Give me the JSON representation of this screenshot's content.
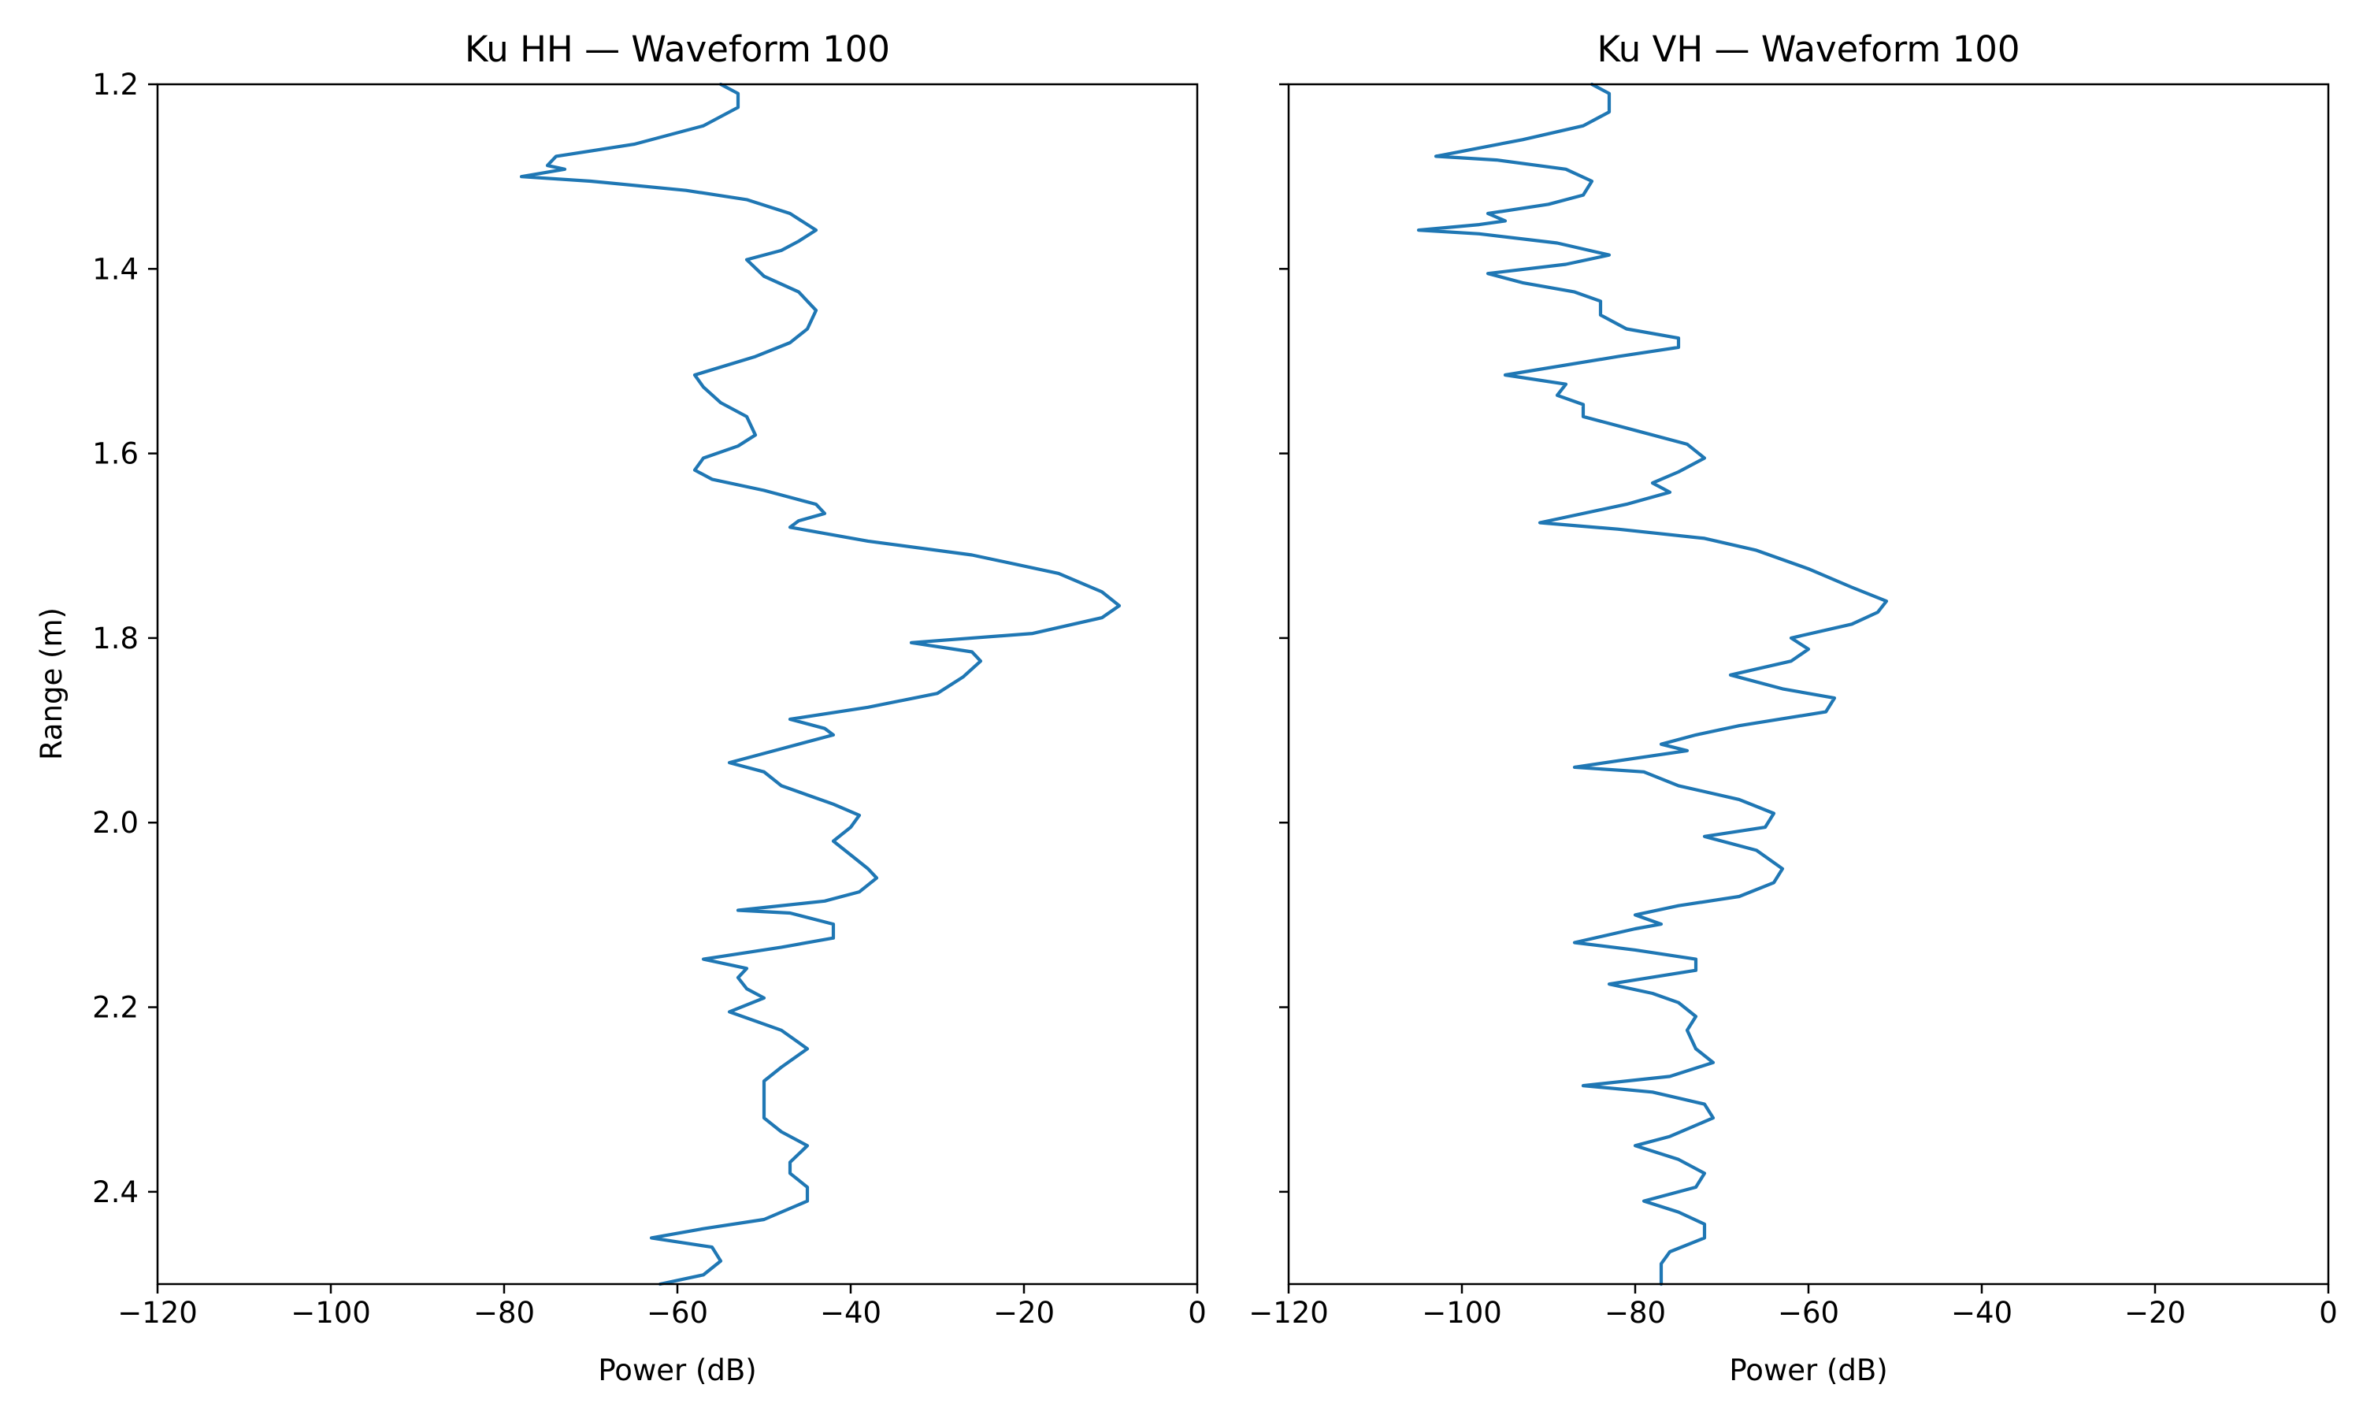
{
  "colors": {
    "series": "#1f77b4",
    "axes": "#000000",
    "background": "#ffffff"
  },
  "chart_data": [
    {
      "type": "line",
      "title": "Ku HH — Waveform 100",
      "xlabel": "Power (dB)",
      "ylabel": "Range (m)",
      "xlim": [
        -120,
        0
      ],
      "ylim": [
        1.2,
        2.5
      ],
      "y_inverted": true,
      "grid": false,
      "xticks": [
        -120,
        -100,
        -80,
        -60,
        -40,
        -20,
        0
      ],
      "xtick_labels": [
        "−120",
        "−100",
        "−80",
        "−60",
        "−40",
        "−20",
        "0"
      ],
      "yticks": [
        1.2,
        1.4,
        1.6,
        1.8,
        2.0,
        2.2,
        2.4
      ],
      "ytick_labels": [
        "1.2",
        "1.4",
        "1.6",
        "1.8",
        "2.0",
        "2.2",
        "2.4"
      ],
      "series": [
        {
          "name": "HH",
          "points": [
            [
              -55,
              1.2
            ],
            [
              -53,
              1.21
            ],
            [
              -53,
              1.225
            ],
            [
              -57,
              1.245
            ],
            [
              -65,
              1.265
            ],
            [
              -74,
              1.278
            ],
            [
              -75,
              1.288
            ],
            [
              -73,
              1.292
            ],
            [
              -78,
              1.3
            ],
            [
              -70,
              1.305
            ],
            [
              -59,
              1.315
            ],
            [
              -52,
              1.325
            ],
            [
              -47,
              1.34
            ],
            [
              -44,
              1.358
            ],
            [
              -46,
              1.37
            ],
            [
              -48,
              1.38
            ],
            [
              -52,
              1.39
            ],
            [
              -50,
              1.408
            ],
            [
              -46,
              1.425
            ],
            [
              -44,
              1.445
            ],
            [
              -45,
              1.465
            ],
            [
              -47,
              1.48
            ],
            [
              -51,
              1.495
            ],
            [
              -58,
              1.515
            ],
            [
              -57,
              1.528
            ],
            [
              -55,
              1.545
            ],
            [
              -52,
              1.56
            ],
            [
              -51,
              1.58
            ],
            [
              -53,
              1.592
            ],
            [
              -57,
              1.605
            ],
            [
              -58,
              1.618
            ],
            [
              -56,
              1.628
            ],
            [
              -50,
              1.64
            ],
            [
              -44,
              1.655
            ],
            [
              -43,
              1.665
            ],
            [
              -46,
              1.673
            ],
            [
              -47,
              1.68
            ],
            [
              -38,
              1.695
            ],
            [
              -26,
              1.71
            ],
            [
              -16,
              1.73
            ],
            [
              -11,
              1.75
            ],
            [
              -9,
              1.765
            ],
            [
              -11,
              1.778
            ],
            [
              -19,
              1.795
            ],
            [
              -33,
              1.805
            ],
            [
              -26,
              1.815
            ],
            [
              -25,
              1.825
            ],
            [
              -27,
              1.842
            ],
            [
              -30,
              1.86
            ],
            [
              -38,
              1.875
            ],
            [
              -47,
              1.888
            ],
            [
              -43,
              1.898
            ],
            [
              -42,
              1.905
            ],
            [
              -48,
              1.92
            ],
            [
              -54,
              1.935
            ],
            [
              -50,
              1.945
            ],
            [
              -48,
              1.96
            ],
            [
              -45,
              1.97
            ],
            [
              -42,
              1.98
            ],
            [
              -39,
              1.992
            ],
            [
              -40,
              2.005
            ],
            [
              -42,
              2.02
            ],
            [
              -40,
              2.035
            ],
            [
              -38,
              2.05
            ],
            [
              -37,
              2.06
            ],
            [
              -39,
              2.075
            ],
            [
              -43,
              2.085
            ],
            [
              -53,
              2.095
            ],
            [
              -47,
              2.098
            ],
            [
              -42,
              2.11
            ],
            [
              -42,
              2.125
            ],
            [
              -48,
              2.135
            ],
            [
              -57,
              2.148
            ],
            [
              -52,
              2.158
            ],
            [
              -53,
              2.168
            ],
            [
              -52,
              2.18
            ],
            [
              -50,
              2.19
            ],
            [
              -54,
              2.205
            ],
            [
              -48,
              2.225
            ],
            [
              -45,
              2.245
            ],
            [
              -48,
              2.265
            ],
            [
              -50,
              2.28
            ],
            [
              -50,
              2.3
            ],
            [
              -50,
              2.32
            ],
            [
              -48,
              2.335
            ],
            [
              -45,
              2.35
            ],
            [
              -47,
              2.368
            ],
            [
              -47,
              2.38
            ],
            [
              -45,
              2.395
            ],
            [
              -45,
              2.41
            ],
            [
              -50,
              2.43
            ],
            [
              -57,
              2.44
            ],
            [
              -63,
              2.45
            ],
            [
              -56,
              2.46
            ],
            [
              -55,
              2.475
            ],
            [
              -57,
              2.49
            ],
            [
              -62,
              2.5
            ]
          ]
        }
      ]
    },
    {
      "type": "line",
      "title": "Ku VH — Waveform 100",
      "xlabel": "Power (dB)",
      "ylabel": "",
      "xlim": [
        -120,
        0
      ],
      "ylim": [
        1.2,
        2.5
      ],
      "y_inverted": true,
      "grid": false,
      "xticks": [
        -120,
        -100,
        -80,
        -60,
        -40,
        -20,
        0
      ],
      "xtick_labels": [
        "−120",
        "−100",
        "−80",
        "−60",
        "−40",
        "−20",
        "0"
      ],
      "yticks": [
        1.2,
        1.4,
        1.6,
        1.8,
        2.0,
        2.2,
        2.4
      ],
      "ytick_labels": [],
      "series": [
        {
          "name": "VH",
          "points": [
            [
              -85,
              1.2
            ],
            [
              -83,
              1.21
            ],
            [
              -83,
              1.23
            ],
            [
              -86,
              1.245
            ],
            [
              -93,
              1.26
            ],
            [
              -103,
              1.278
            ],
            [
              -96,
              1.282
            ],
            [
              -88,
              1.292
            ],
            [
              -85,
              1.305
            ],
            [
              -86,
              1.32
            ],
            [
              -90,
              1.33
            ],
            [
              -97,
              1.34
            ],
            [
              -95,
              1.348
            ],
            [
              -98,
              1.352
            ],
            [
              -105,
              1.358
            ],
            [
              -98,
              1.362
            ],
            [
              -89,
              1.372
            ],
            [
              -83,
              1.385
            ],
            [
              -88,
              1.395
            ],
            [
              -97,
              1.405
            ],
            [
              -93,
              1.415
            ],
            [
              -87,
              1.425
            ],
            [
              -84,
              1.435
            ],
            [
              -84,
              1.45
            ],
            [
              -81,
              1.465
            ],
            [
              -75,
              1.475
            ],
            [
              -75,
              1.485
            ],
            [
              -82,
              1.495
            ],
            [
              -95,
              1.515
            ],
            [
              -88,
              1.525
            ],
            [
              -89,
              1.537
            ],
            [
              -86,
              1.547
            ],
            [
              -86,
              1.56
            ],
            [
              -80,
              1.575
            ],
            [
              -74,
              1.59
            ],
            [
              -72,
              1.605
            ],
            [
              -75,
              1.62
            ],
            [
              -78,
              1.632
            ],
            [
              -76,
              1.642
            ],
            [
              -81,
              1.655
            ],
            [
              -91,
              1.675
            ],
            [
              -82,
              1.682
            ],
            [
              -72,
              1.692
            ],
            [
              -66,
              1.705
            ],
            [
              -60,
              1.725
            ],
            [
              -55,
              1.745
            ],
            [
              -51,
              1.76
            ],
            [
              -52,
              1.772
            ],
            [
              -55,
              1.785
            ],
            [
              -62,
              1.8
            ],
            [
              -60,
              1.812
            ],
            [
              -62,
              1.825
            ],
            [
              -69,
              1.84
            ],
            [
              -63,
              1.855
            ],
            [
              -57,
              1.865
            ],
            [
              -58,
              1.88
            ],
            [
              -68,
              1.895
            ],
            [
              -73,
              1.905
            ],
            [
              -77,
              1.915
            ],
            [
              -74,
              1.922
            ],
            [
              -87,
              1.94
            ],
            [
              -79,
              1.945
            ],
            [
              -75,
              1.96
            ],
            [
              -68,
              1.975
            ],
            [
              -64,
              1.99
            ],
            [
              -65,
              2.005
            ],
            [
              -72,
              2.015
            ],
            [
              -66,
              2.03
            ],
            [
              -63,
              2.05
            ],
            [
              -64,
              2.065
            ],
            [
              -68,
              2.08
            ],
            [
              -75,
              2.09
            ],
            [
              -80,
              2.1
            ],
            [
              -77,
              2.11
            ],
            [
              -80,
              2.115
            ],
            [
              -87,
              2.13
            ],
            [
              -80,
              2.138
            ],
            [
              -73,
              2.148
            ],
            [
              -73,
              2.16
            ],
            [
              -83,
              2.175
            ],
            [
              -78,
              2.185
            ],
            [
              -75,
              2.195
            ],
            [
              -73,
              2.21
            ],
            [
              -74,
              2.225
            ],
            [
              -73,
              2.245
            ],
            [
              -71,
              2.26
            ],
            [
              -76,
              2.275
            ],
            [
              -86,
              2.285
            ],
            [
              -78,
              2.292
            ],
            [
              -72,
              2.305
            ],
            [
              -71,
              2.32
            ],
            [
              -76,
              2.34
            ],
            [
              -80,
              2.35
            ],
            [
              -75,
              2.365
            ],
            [
              -72,
              2.38
            ],
            [
              -73,
              2.395
            ],
            [
              -79,
              2.41
            ],
            [
              -75,
              2.422
            ],
            [
              -72,
              2.435
            ],
            [
              -72,
              2.45
            ],
            [
              -76,
              2.465
            ],
            [
              -77,
              2.478
            ],
            [
              -77,
              2.5
            ]
          ]
        }
      ]
    }
  ]
}
